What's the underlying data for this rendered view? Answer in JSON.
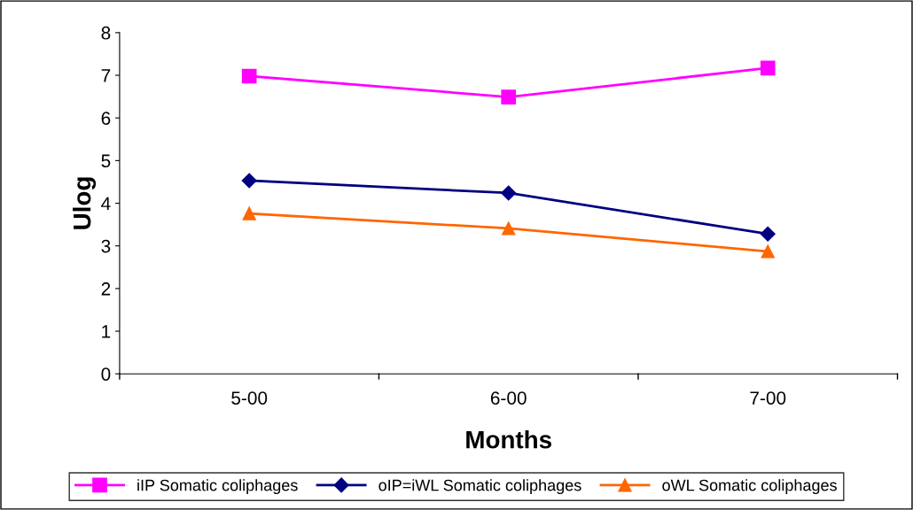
{
  "chart_data": {
    "type": "line",
    "xlabel": "Months",
    "ylabel": "Ulog",
    "categories": [
      "5-00",
      "6-00",
      "7-00"
    ],
    "series": [
      {
        "name": "iIP Somatic coliphages",
        "color": "#ff00ff",
        "marker": "square",
        "values": [
          6.98,
          6.49,
          7.17
        ]
      },
      {
        "name": "oIP=iWL Somatic coliphages",
        "color": "#000080",
        "marker": "diamond",
        "values": [
          4.53,
          4.24,
          3.28
        ]
      },
      {
        "name": "oWL Somatic coliphages",
        "color": "#ff6600",
        "marker": "triangle",
        "values": [
          3.76,
          3.41,
          2.87
        ]
      }
    ],
    "ylim": [
      0,
      8
    ],
    "yticks": [
      0,
      1,
      2,
      3,
      4,
      5,
      6,
      7,
      8
    ],
    "grid": false,
    "legend": "bottom",
    "line_style": "solid"
  }
}
